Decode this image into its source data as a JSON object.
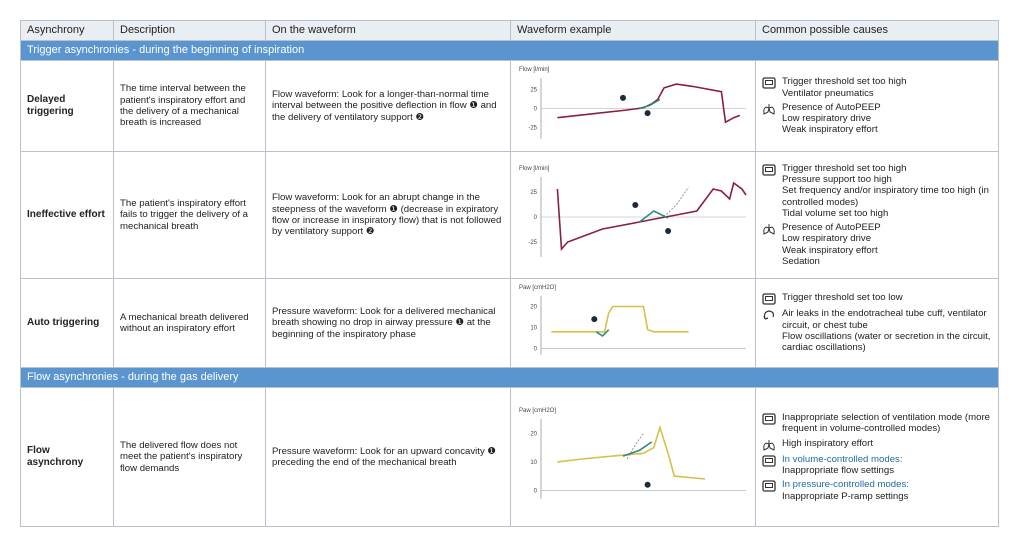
{
  "table": {
    "headers": [
      "Asynchrony",
      "Description",
      "On the waveform",
      "Waveform example",
      "Common possible causes"
    ],
    "sections": [
      {
        "title": "Trigger asynchronies - during the beginning of inspiration",
        "rows": [
          {
            "asynchrony": "Delayed triggering",
            "description": "The time interval between the patient's inspiratory effort and the delivery of a mechanical breath is increased",
            "waveform": "Flow waveform: Look for a longer-than-normal time interval between the positive deflection in flow ❶ and the delivery of ventilatory support ❷",
            "axis_label": "Flow [l/min]",
            "ticks": [
              25,
              0,
              -25
            ],
            "causes": [
              [
                "Trigger threshold set too high",
                "Ventilator pneumatics"
              ],
              [
                "Presence of AutoPEEP",
                "Low respiratory drive",
                "Weak inspiratory effort"
              ]
            ]
          },
          {
            "asynchrony": "Ineffective effort",
            "description": "The patient's inspiratory effort fails to trigger the delivery of a mechanical breath",
            "waveform": "Flow waveform: Look for an abrupt change in the steepness of the waveform ❶ (decrease in expiratory flow or increase in inspiratory flow) that is not followed by ventilatory support ❷",
            "axis_label": "Flow [l/min]",
            "ticks": [
              25,
              0,
              -25
            ],
            "causes": [
              [
                "Trigger threshold set too high",
                "Pressure support too high",
                "Set frequency and/or inspiratory time too high (in controlled modes)",
                "Tidal volume set too high"
              ],
              [
                "Presence of AutoPEEP",
                "Low respiratory drive",
                "Weak inspiratory effort",
                "Sedation"
              ]
            ]
          },
          {
            "asynchrony": "Auto triggering",
            "description": "A mechanical breath delivered without an inspiratory effort",
            "waveform": "Pressure waveform: Look for a delivered mechanical breath showing no drop in airway pressure ❶ at the beginning of the inspiratory phase",
            "axis_label": "Paw [cmH2O]",
            "ticks": [
              20,
              10,
              0
            ],
            "causes": [
              [
                "Trigger threshold set too low"
              ],
              [
                "Air leaks in the endotracheal tube cuff, ventilator circuit, or chest tube",
                "Flow oscillations (water or secretion in the circuit, cardiac oscillations)"
              ]
            ]
          }
        ]
      },
      {
        "title": "Flow asynchronies -  during the gas delivery",
        "rows": [
          {
            "asynchrony": "Flow asynchrony",
            "description": "The delivered flow does not meet the patient's inspiratory flow demands",
            "waveform": "Pressure waveform: Look for an upward concavity ❶ preceding the end of the mechanical breath",
            "axis_label": "Paw [cmH2O]",
            "ticks": [
              20,
              10,
              0
            ],
            "causes": [
              [
                "Inappropriate selection of ventilation mode (more frequent in volume-controlled modes)"
              ],
              [
                "High inspiratory effort"
              ],
              [
                "In volume-controlled modes:",
                "Inappropriate flow settings"
              ],
              [
                "In pressure-controlled modes:",
                "Inappropriate P-ramp settings"
              ]
            ]
          }
        ]
      }
    ]
  }
}
